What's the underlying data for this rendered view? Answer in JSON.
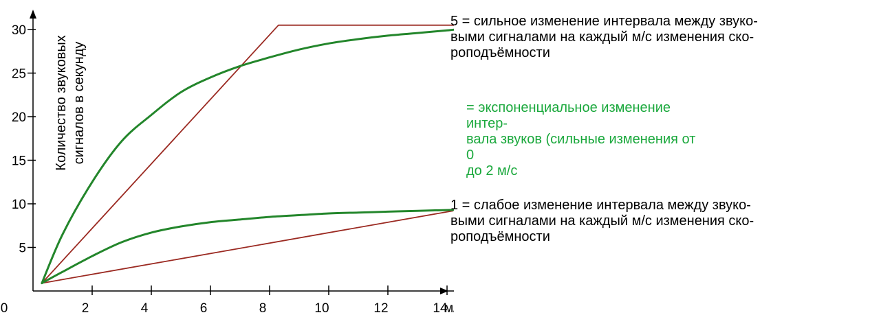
{
  "chart_data": {
    "type": "line",
    "title": "",
    "xlabel": "м/с",
    "ylabel": "Количество звуковых сигналов в секунду",
    "ylabel_lines": [
      "Количество звуковых",
      "сигналов в секунду"
    ],
    "xlim": [
      0,
      15
    ],
    "ylim": [
      0,
      33
    ],
    "x_ticks": [
      0,
      2,
      4,
      6,
      8,
      10,
      12,
      14
    ],
    "x_tick_labels": [
      "0",
      "2",
      "4",
      "6",
      "8",
      "10",
      "12",
      "14"
    ],
    "y_ticks": [
      5,
      10,
      15,
      20,
      25,
      30
    ],
    "y_tick_labels": [
      "5",
      "10",
      "15",
      "20",
      "25",
      "30"
    ],
    "grid": false,
    "series": [
      {
        "kind": "linear",
        "style": "setting 5",
        "color": "#9b2a22",
        "x": [
          0.3,
          8.3,
          14.5
        ],
        "y": [
          0.9,
          30.5,
          30.5
        ]
      },
      {
        "kind": "exponential",
        "style": "setting 5",
        "color": "#23862b",
        "x": [
          0.3,
          1,
          2,
          3,
          4,
          5,
          6,
          7,
          8,
          9,
          10,
          11,
          12,
          13,
          14,
          14.8
        ],
        "y": [
          0.9,
          6.5,
          12.5,
          17.2,
          20.2,
          22.8,
          24.5,
          25.8,
          26.8,
          27.7,
          28.4,
          28.9,
          29.3,
          29.6,
          29.9,
          30.2
        ]
      },
      {
        "kind": "linear",
        "style": "setting 1",
        "color": "#9b2a22",
        "x": [
          0.3,
          14.2
        ],
        "y": [
          0.9,
          9.2
        ]
      },
      {
        "kind": "exponential",
        "style": "setting 1",
        "color": "#23862b",
        "x": [
          0.3,
          1,
          2,
          3,
          4,
          5,
          6,
          7,
          8,
          9,
          10,
          11,
          12,
          13,
          14.2
        ],
        "y": [
          0.9,
          2.2,
          4.0,
          5.6,
          6.7,
          7.4,
          7.9,
          8.2,
          8.5,
          8.7,
          8.9,
          9.0,
          9.1,
          9.2,
          9.3
        ]
      }
    ],
    "annotations": {
      "setting5": [
        "5 = сильное изменение интервала между звуко-",
        "выми сигналами на каждый м/с изменения ско-",
        "роподъёмности"
      ],
      "exponential": [
        "= экспоненциальное изменение интер-",
        "вала звуков (сильные изменения от 0",
        "до 2 м/с"
      ],
      "setting1": [
        "1 = слабое изменение интервала между звуко-",
        "выми сигналами на каждый м/с изменения ско-",
        "роподъёмности"
      ]
    }
  },
  "colors": {
    "axis": "#000000",
    "linear": "#9b2a22",
    "exponential": "#23862b",
    "exp_annotation": "#1aa83c"
  }
}
